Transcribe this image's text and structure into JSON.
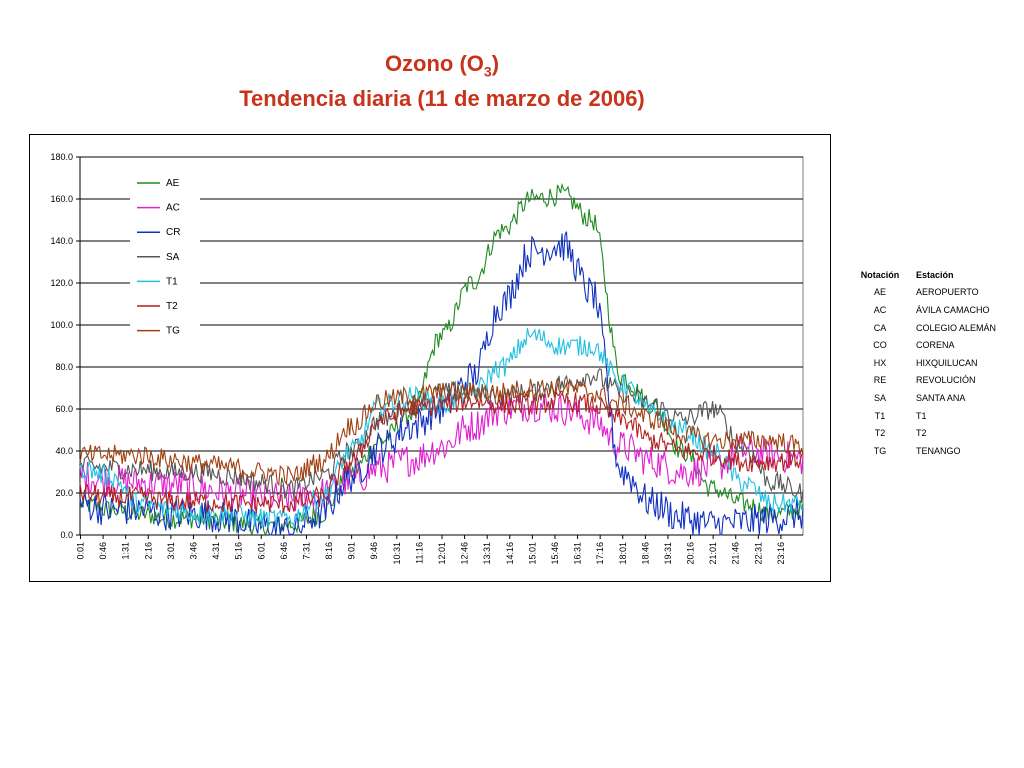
{
  "title": {
    "line1_prefix": "Ozono (O",
    "line1_sub": "3",
    "line1_suffix": ")",
    "line2": "Tendencia diaria (11 de marzo de 2006)"
  },
  "notation_table": {
    "header": {
      "notation": "Notación",
      "station": "Estación"
    },
    "rows": [
      {
        "notation": "AE",
        "station": "AEROPUERTO"
      },
      {
        "notation": "AC",
        "station": "ÁVILA CAMACHO"
      },
      {
        "notation": "CA",
        "station": "COLEGIO ALEMÁN"
      },
      {
        "notation": "CO",
        "station": "CORENA"
      },
      {
        "notation": "HX",
        "station": "HIXQUILUCAN"
      },
      {
        "notation": "RE",
        "station": "REVOLUCIÓN"
      },
      {
        "notation": "SA",
        "station": "SANTA ANA"
      },
      {
        "notation": "T1",
        "station": "T1"
      },
      {
        "notation": "T2",
        "station": "T2"
      },
      {
        "notation": "TG",
        "station": "TENANGO"
      }
    ]
  },
  "chart_data": {
    "type": "line",
    "title": "Ozono (O3) Tendencia diaria (11 de marzo de 2006)",
    "xlabel": "",
    "ylabel": "",
    "ylim": [
      0,
      180
    ],
    "yticks": [
      "0.0",
      "20.0",
      "40.0",
      "60.0",
      "80.0",
      "100.0",
      "120.0",
      "140.0",
      "160.0",
      "180.0"
    ],
    "xticks": [
      "0:01",
      "0:46",
      "1:31",
      "2:16",
      "3:01",
      "3:46",
      "4:31",
      "5:16",
      "6:01",
      "6:46",
      "7:31",
      "8:16",
      "9:01",
      "9:46",
      "10:31",
      "11:16",
      "12:01",
      "12:46",
      "13:31",
      "14:16",
      "15:01",
      "15:46",
      "16:31",
      "17:16",
      "18:01",
      "18:46",
      "19:31",
      "20:16",
      "21:01",
      "21:46",
      "22:31",
      "23:16"
    ],
    "grid": true,
    "legend_position": "top-left",
    "x_hours": [
      0,
      1,
      2,
      3,
      4,
      5,
      6,
      7,
      8,
      9,
      10,
      11,
      12,
      13,
      14,
      15,
      16,
      17,
      18,
      19,
      20,
      21,
      22,
      23,
      24
    ],
    "series": [
      {
        "name": "AE",
        "color": "#1f8a1f",
        "values": [
          15,
          12,
          10,
          8,
          8,
          6,
          4,
          5,
          10,
          30,
          45,
          58,
          95,
          120,
          145,
          160,
          162,
          150,
          75,
          62,
          40,
          22,
          15,
          10,
          12
        ]
      },
      {
        "name": "AC",
        "color": "#e020d0",
        "values": [
          28,
          26,
          25,
          24,
          22,
          20,
          18,
          17,
          20,
          26,
          32,
          36,
          42,
          52,
          60,
          62,
          60,
          55,
          42,
          35,
          30,
          32,
          40,
          38,
          36
        ]
      },
      {
        "name": "CR",
        "color": "#1030c0",
        "values": [
          15,
          12,
          12,
          10,
          10,
          8,
          4,
          2,
          10,
          28,
          42,
          52,
          60,
          75,
          110,
          135,
          138,
          115,
          30,
          15,
          8,
          5,
          6,
          8,
          10
        ]
      },
      {
        "name": "SA",
        "color": "#555555",
        "values": [
          33,
          32,
          31,
          30,
          30,
          28,
          25,
          22,
          28,
          40,
          55,
          62,
          68,
          68,
          66,
          68,
          72,
          76,
          68,
          62,
          55,
          60,
          42,
          25,
          20
        ]
      },
      {
        "name": "T1",
        "color": "#20c0e0",
        "values": [
          32,
          28,
          15,
          12,
          10,
          10,
          8,
          8,
          18,
          40,
          62,
          66,
          62,
          68,
          80,
          95,
          90,
          90,
          72,
          58,
          50,
          40,
          25,
          15,
          15
        ]
      },
      {
        "name": "T2",
        "color": "#b02020",
        "values": [
          20,
          18,
          18,
          16,
          16,
          15,
          15,
          15,
          18,
          35,
          55,
          60,
          62,
          64,
          62,
          62,
          64,
          62,
          55,
          45,
          40,
          38,
          35,
          35,
          36
        ]
      },
      {
        "name": "TG",
        "color": "#a04010",
        "values": [
          38,
          38,
          38,
          36,
          34,
          32,
          30,
          28,
          35,
          52,
          64,
          66,
          68,
          68,
          68,
          70,
          70,
          68,
          62,
          55,
          48,
          45,
          45,
          45,
          42
        ]
      }
    ]
  }
}
